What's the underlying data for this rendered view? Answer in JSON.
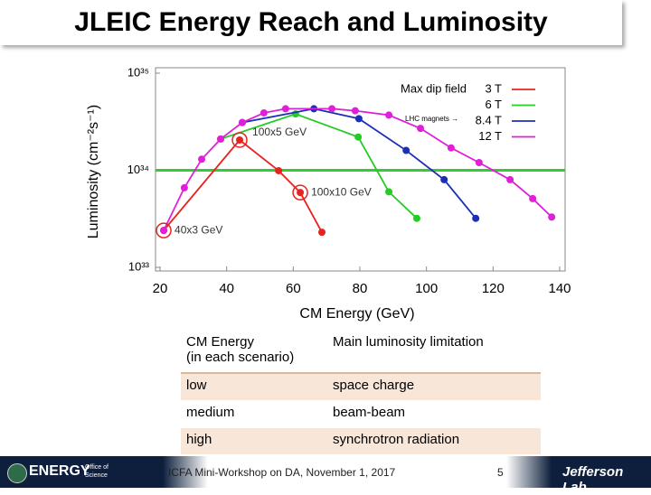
{
  "slide": {
    "title": "JLEIC Energy Reach and Luminosity"
  },
  "chart_data": {
    "type": "line",
    "log_y": true,
    "x_label": "CM Energy (GeV)",
    "y_label": "Luminosity (cm⁻²s⁻¹)",
    "xlim": [
      20,
      140
    ],
    "xticks": [
      20,
      40,
      60,
      80,
      100,
      120,
      140
    ],
    "ylim": [
      1e+33,
      1e+35
    ],
    "yticks": [
      {
        "value": 1e+33,
        "label": "10³³"
      },
      {
        "value": 1e+34,
        "label": "10³⁴"
      },
      {
        "value": 1e+35,
        "label": "10³⁵"
      }
    ],
    "legend_title": "Max dip field",
    "legend_note": "LHC magnets →",
    "hline": {
      "value": 1e+34,
      "color": "#33cc33"
    },
    "series": [
      {
        "name": "3 T",
        "color": "#e8221e",
        "x": [
          21.1,
          43.9,
          55.6,
          62.1,
          68.6
        ],
        "values": [
          2.4e+33,
          2.05e+34,
          9.9e+33,
          5.9e+33,
          2.3e+33
        ]
      },
      {
        "name": "6 T",
        "color": "#22cc22",
        "x": [
          38.2,
          60.7,
          79.5,
          88.7,
          97.1
        ],
        "values": [
          2.1e+34,
          3.8e+34,
          2.2e+34,
          6e+33,
          3.2e+33
        ]
      },
      {
        "name": "8.4 T",
        "color": "#1a2fb5",
        "x": [
          44.7,
          66.2,
          79.7,
          93.9,
          105.3,
          114.8
        ],
        "values": [
          3.1e+34,
          4.3e+34,
          3.4e+34,
          1.6e+34,
          8e+33,
          3.2e+33
        ]
      },
      {
        "name": "12 T",
        "color": "#e020d8",
        "x": [
          21.1,
          27.3,
          32.5,
          38.2,
          44.7,
          51.2,
          57.7,
          71.6,
          78.6,
          88.7,
          98.2,
          107.4,
          115.8,
          125.1,
          131.9,
          137.6
        ],
        "values": [
          2.4e+33,
          6.6e+33,
          1.3e+34,
          2.1e+34,
          3.1e+34,
          3.9e+34,
          4.3e+34,
          4.3e+34,
          4.1e+34,
          3.7e+34,
          2.7e+34,
          1.7e+34,
          1.2e+34,
          8e+33,
          5.1e+33,
          3.3e+33
        ]
      }
    ],
    "annotations": [
      {
        "text": "100x5 GeV",
        "x": 43.9,
        "y": 2.05e+34
      },
      {
        "text": "100x10 GeV",
        "x": 62.1,
        "y": 5.9e+33
      },
      {
        "text": "40x3 GeV",
        "x": 21.1,
        "y": 2.4e+33
      }
    ]
  },
  "table": {
    "header": [
      "CM Energy\n(in each scenario)",
      "Main luminosity limitation"
    ],
    "rows": [
      [
        "low",
        "space charge"
      ],
      [
        "medium",
        "beam-beam"
      ],
      [
        "high",
        "synchrotron radiation"
      ]
    ]
  },
  "footer": {
    "energy": "ENERGY",
    "office": "Office of Science",
    "text": "ICFA Mini-Workshop on DA, November 1, 2017",
    "page": "5",
    "lab": "Jefferson Lab"
  }
}
